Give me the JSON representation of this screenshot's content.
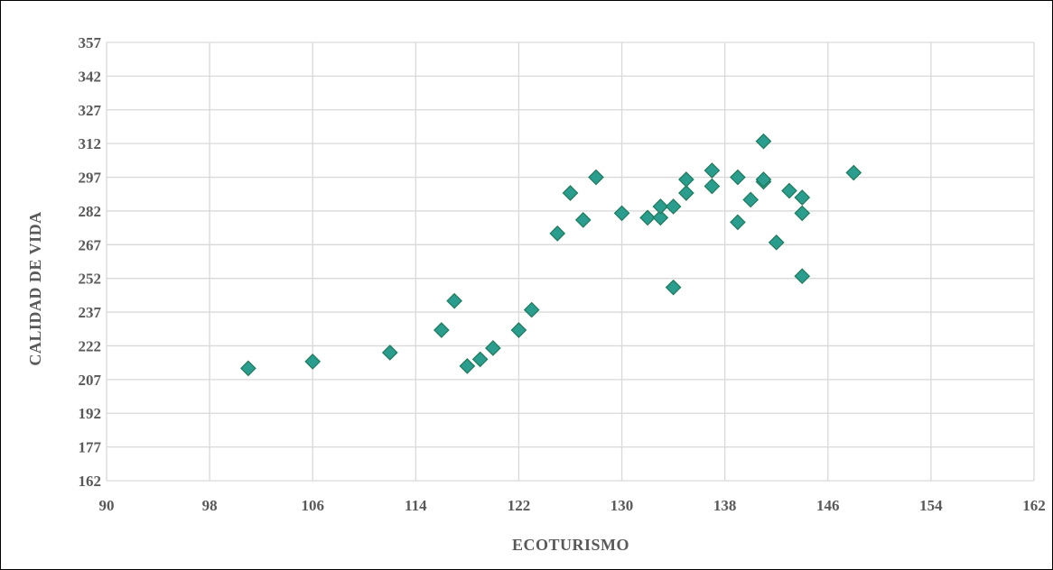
{
  "chart_data": {
    "type": "scatter",
    "xlabel": "ECOTURISMO",
    "ylabel": "CALIDAD DE VIDA",
    "xlim": [
      90,
      162
    ],
    "ylim": [
      162,
      357
    ],
    "xticks": [
      90,
      98,
      106,
      114,
      122,
      130,
      138,
      146,
      154,
      162
    ],
    "yticks": [
      162,
      177,
      192,
      207,
      222,
      237,
      252,
      267,
      282,
      297,
      312,
      327,
      342,
      357
    ],
    "grid": true,
    "marker": "diamond",
    "marker_color": "#2a9d8f",
    "points": [
      {
        "x": 101,
        "y": 212
      },
      {
        "x": 106,
        "y": 215
      },
      {
        "x": 112,
        "y": 219
      },
      {
        "x": 116,
        "y": 229
      },
      {
        "x": 117,
        "y": 242
      },
      {
        "x": 118,
        "y": 213
      },
      {
        "x": 119,
        "y": 216
      },
      {
        "x": 120,
        "y": 221
      },
      {
        "x": 122,
        "y": 229
      },
      {
        "x": 123,
        "y": 238
      },
      {
        "x": 125,
        "y": 272
      },
      {
        "x": 126,
        "y": 290
      },
      {
        "x": 127,
        "y": 278
      },
      {
        "x": 128,
        "y": 297
      },
      {
        "x": 130,
        "y": 281
      },
      {
        "x": 132,
        "y": 279
      },
      {
        "x": 133,
        "y": 279
      },
      {
        "x": 133,
        "y": 284
      },
      {
        "x": 134,
        "y": 284
      },
      {
        "x": 134,
        "y": 248
      },
      {
        "x": 135,
        "y": 290
      },
      {
        "x": 135,
        "y": 296
      },
      {
        "x": 137,
        "y": 293
      },
      {
        "x": 137,
        "y": 300
      },
      {
        "x": 139,
        "y": 297
      },
      {
        "x": 139,
        "y": 277
      },
      {
        "x": 140,
        "y": 287
      },
      {
        "x": 141,
        "y": 295
      },
      {
        "x": 141,
        "y": 296
      },
      {
        "x": 141,
        "y": 313
      },
      {
        "x": 142,
        "y": 268
      },
      {
        "x": 143,
        "y": 291
      },
      {
        "x": 144,
        "y": 288
      },
      {
        "x": 144,
        "y": 281
      },
      {
        "x": 144,
        "y": 253
      },
      {
        "x": 148,
        "y": 299
      }
    ]
  }
}
